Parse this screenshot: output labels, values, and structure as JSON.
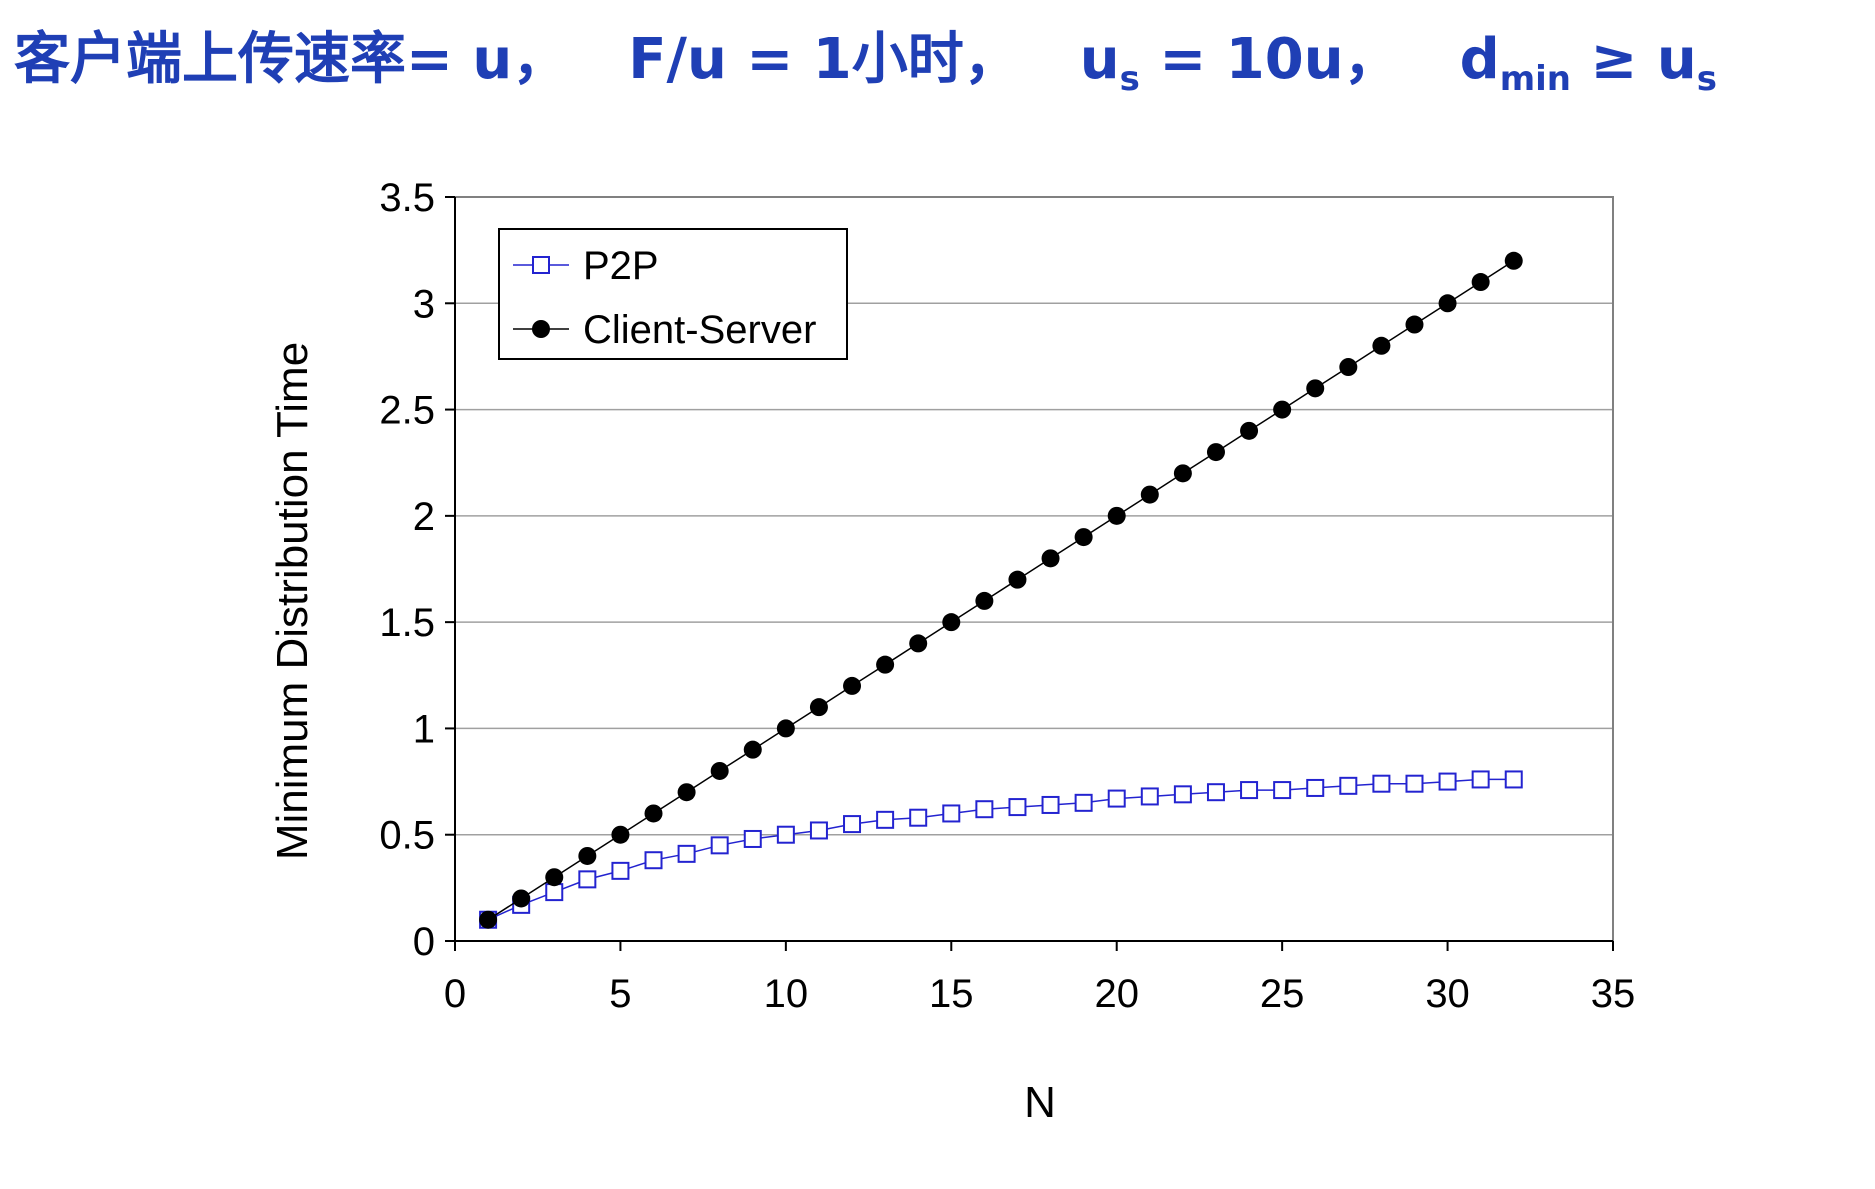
{
  "slide": {
    "title_prefix": "客户端上传速率= u，",
    "title_ratio": "F/u = 1小时，",
    "title_us_u": "u",
    "title_us_sub": "s",
    "title_us_rest": " = 10u，",
    "title_dmin_d": "d",
    "title_dmin_sub": "min",
    "title_ge": " ≥ u",
    "title_ge_sub": "s"
  },
  "chart_data": {
    "type": "line",
    "title": "",
    "xlabel": "N",
    "ylabel": "Minimum Distribution Time",
    "xlim": [
      0,
      35
    ],
    "ylim": [
      0,
      3.5
    ],
    "x_ticks": [
      0,
      5,
      10,
      15,
      20,
      25,
      30,
      35
    ],
    "y_ticks": [
      0,
      0.5,
      1,
      1.5,
      2,
      2.5,
      3,
      3.5
    ],
    "y_tick_labels": [
      "0",
      "0.5",
      "1",
      "1.5",
      "2",
      "2.5",
      "3",
      "3.5"
    ],
    "x_tick_labels": [
      "0",
      "5",
      "10",
      "15",
      "20",
      "25",
      "30",
      "35"
    ],
    "grid": "horizontal",
    "legend_position": "top-left",
    "x": [
      1,
      2,
      3,
      4,
      5,
      6,
      7,
      8,
      9,
      10,
      11,
      12,
      13,
      14,
      15,
      16,
      17,
      18,
      19,
      20,
      21,
      22,
      23,
      24,
      25,
      26,
      27,
      28,
      29,
      30,
      31,
      32
    ],
    "series": [
      {
        "name": "P2P",
        "marker": "open-square",
        "color": "#2323d0",
        "values": [
          0.1,
          0.17,
          0.23,
          0.29,
          0.33,
          0.38,
          0.41,
          0.45,
          0.48,
          0.5,
          0.52,
          0.55,
          0.57,
          0.58,
          0.6,
          0.62,
          0.63,
          0.64,
          0.65,
          0.67,
          0.68,
          0.69,
          0.7,
          0.71,
          0.71,
          0.72,
          0.73,
          0.74,
          0.74,
          0.75,
          0.76,
          0.76
        ]
      },
      {
        "name": "Client-Server",
        "marker": "filled-circle",
        "color": "#000000",
        "values": [
          0.1,
          0.2,
          0.3,
          0.4,
          0.5,
          0.6,
          0.7,
          0.8,
          0.9,
          1.0,
          1.1,
          1.2,
          1.3,
          1.4,
          1.5,
          1.6,
          1.7,
          1.8,
          1.9,
          2.0,
          2.1,
          2.2,
          2.3,
          2.4,
          2.5,
          2.6,
          2.7,
          2.8,
          2.9,
          3.0,
          3.1,
          3.2
        ]
      }
    ]
  }
}
